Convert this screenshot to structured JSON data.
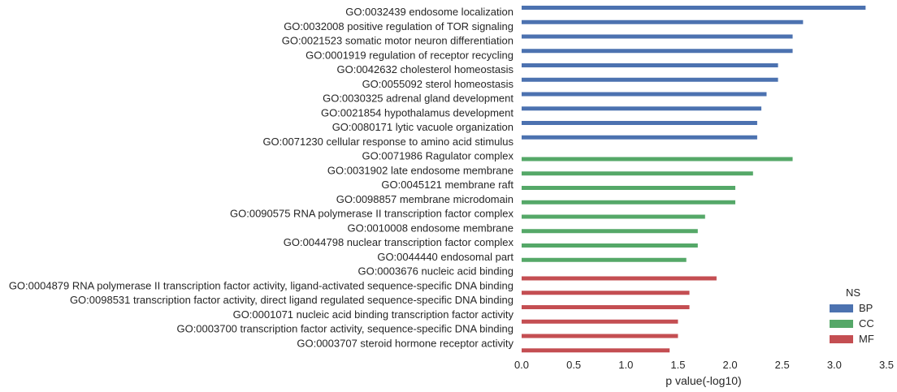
{
  "chart_data": {
    "type": "bar",
    "orientation": "horizontal",
    "xlabel": "p value(-log10)",
    "ylabel": "",
    "xlim": [
      0,
      3.5
    ],
    "xticks": [
      "0.0",
      "0.5",
      "1.0",
      "1.5",
      "2.0",
      "2.5",
      "3.0",
      "3.5"
    ],
    "grid": false,
    "legend": {
      "title": "NS",
      "position": "bottom-right",
      "entries": [
        {
          "name": "BP",
          "color": "#4c72b0"
        },
        {
          "name": "CC",
          "color": "#55a868"
        },
        {
          "name": "MF",
          "color": "#c44e52"
        }
      ]
    },
    "bars": [
      {
        "label": "GO:0032439 endosome localization",
        "group": "BP",
        "value": 3.3
      },
      {
        "label": "GO:0032008 positive regulation of TOR signaling",
        "group": "BP",
        "value": 2.7
      },
      {
        "label": "GO:0021523 somatic motor neuron differentiation",
        "group": "BP",
        "value": 2.6
      },
      {
        "label": "GO:0001919 regulation of receptor recycling",
        "group": "BP",
        "value": 2.6
      },
      {
        "label": "GO:0042632 cholesterol homeostasis",
        "group": "BP",
        "value": 2.46
      },
      {
        "label": "GO:0055092 sterol homeostasis",
        "group": "BP",
        "value": 2.46
      },
      {
        "label": "GO:0030325 adrenal gland development",
        "group": "BP",
        "value": 2.35
      },
      {
        "label": "GO:0021854 hypothalamus development",
        "group": "BP",
        "value": 2.3
      },
      {
        "label": "GO:0080171 lytic vacuole organization",
        "group": "BP",
        "value": 2.26
      },
      {
        "label": "GO:0071230 cellular response to amino acid stimulus",
        "group": "BP",
        "value": 2.26
      },
      {
        "label": "GO:0071986 Ragulator complex",
        "group": "CC",
        "value": 2.6
      },
      {
        "label": "GO:0031902 late endosome membrane",
        "group": "CC",
        "value": 2.22
      },
      {
        "label": "GO:0045121 membrane raft",
        "group": "CC",
        "value": 2.05
      },
      {
        "label": "GO:0098857 membrane microdomain",
        "group": "CC",
        "value": 2.05
      },
      {
        "label": "GO:0090575 RNA polymerase II transcription factor complex",
        "group": "CC",
        "value": 1.76
      },
      {
        "label": "GO:0010008 endosome membrane",
        "group": "CC",
        "value": 1.69
      },
      {
        "label": "GO:0044798 nuclear transcription factor complex",
        "group": "CC",
        "value": 1.69
      },
      {
        "label": "GO:0044440 endosomal part",
        "group": "CC",
        "value": 1.58
      },
      {
        "label": "GO:0003676 nucleic acid binding",
        "group": "MF",
        "value": 1.87
      },
      {
        "label": "GO:0004879 RNA polymerase II transcription factor activity, ligand-activated sequence-specific DNA binding",
        "group": "MF",
        "value": 1.61
      },
      {
        "label": "GO:0098531 transcription factor activity, direct ligand regulated sequence-specific DNA binding",
        "group": "MF",
        "value": 1.61
      },
      {
        "label": "GO:0001071 nucleic acid binding transcription factor activity",
        "group": "MF",
        "value": 1.5
      },
      {
        "label": "GO:0003700 transcription factor activity, sequence-specific DNA binding",
        "group": "MF",
        "value": 1.5
      },
      {
        "label": "GO:0003707 steroid hormone receptor activity",
        "group": "MF",
        "value": 1.42
      }
    ]
  }
}
